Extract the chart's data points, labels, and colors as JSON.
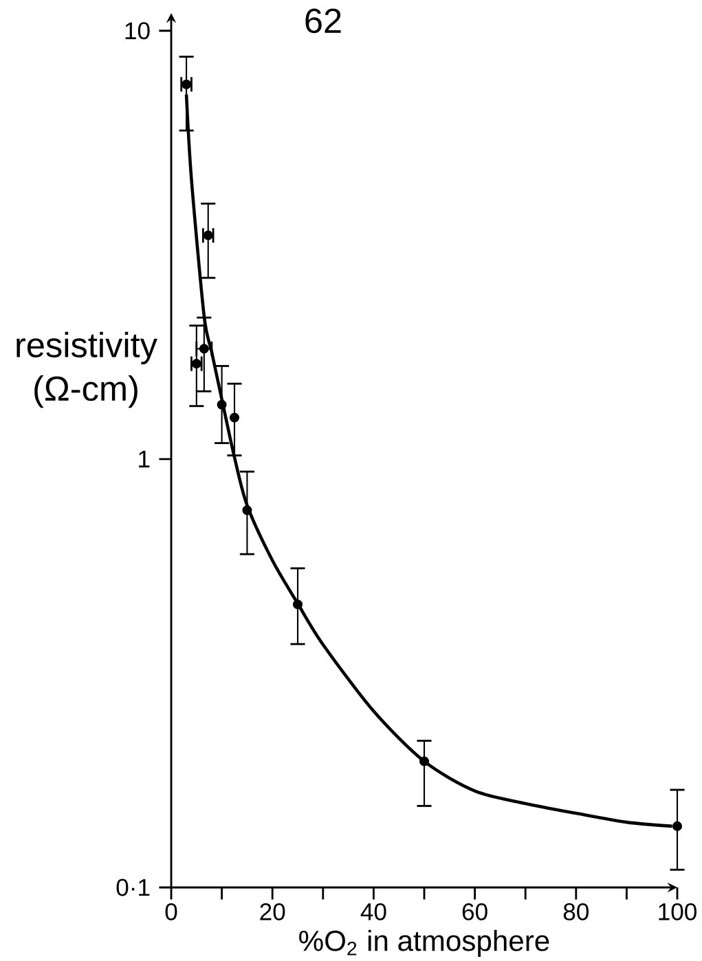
{
  "chart_data": {
    "type": "scatter",
    "xlabel": "%O$_{2}$ in atmosphere",
    "ylabel": "resistivity (Ω-cm)",
    "annotations": [
      "62"
    ],
    "log": "y",
    "xlim": [
      0,
      100
    ],
    "ylim": [
      0.1,
      11
    ],
    "xticks": [
      0,
      20,
      40,
      60,
      80,
      100
    ],
    "yticks": [
      {
        "value": 0.1,
        "label": "0·1"
      },
      1,
      10
    ],
    "series": [
      {
        "type": "scatter",
        "color": "#000000",
        "marker": "circle",
        "x": [
          3,
          7.3,
          5,
          6.5,
          10,
          12.5,
          15,
          25,
          50,
          100
        ],
        "values": [
          7.5,
          3.33,
          1.67,
          1.81,
          1.34,
          1.25,
          0.76,
          0.458,
          0.197,
          0.139
        ],
        "errors": [
          [
            5.85,
            8.7
          ],
          [
            2.65,
            3.95
          ],
          [
            1.33,
            2.05
          ],
          [
            1.44,
            2.14
          ],
          [
            1.09,
            1.65
          ],
          [
            1.02,
            1.5
          ],
          [
            0.6,
            0.935
          ],
          [
            0.37,
            0.556
          ],
          [
            0.155,
            0.22
          ],
          [
            0.11,
            0.169
          ]
        ],
        "xerrors": [
          1,
          1,
          1,
          1.5,
          null,
          null,
          null,
          null,
          null,
          null
        ]
      },
      {
        "type": "line",
        "color": "#000000",
        "marker": "none",
        "x": [
          3,
          4,
          6.5,
          8,
          10,
          12.5,
          15,
          20,
          25,
          30,
          40,
          50,
          60,
          70,
          80,
          90,
          99
        ],
        "values": [
          7.1,
          4.5,
          2.16,
          1.78,
          1.38,
          1.01,
          0.78,
          0.58,
          0.46,
          0.369,
          0.258,
          0.197,
          0.168,
          0.157,
          0.149,
          0.142,
          0.139
        ]
      }
    ]
  }
}
